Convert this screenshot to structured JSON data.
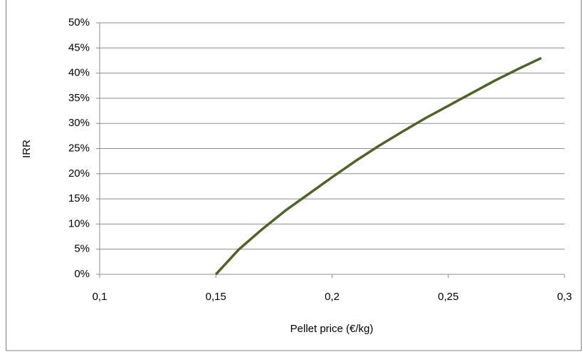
{
  "chart_data": {
    "type": "line",
    "x_label": "Pellet price (€/kg)",
    "y_label": "IRR",
    "x": [
      0.15,
      0.16,
      0.17,
      0.18,
      0.19,
      0.2,
      0.21,
      0.22,
      0.23,
      0.24,
      0.25,
      0.26,
      0.27,
      0.28,
      0.29
    ],
    "series": [
      {
        "color": "#4f6228",
        "values": [
          0,
          5,
          9,
          12.7,
          16,
          19.3,
          22.5,
          25.5,
          28.3,
          31,
          33.5,
          36,
          38.5,
          40.8,
          43
        ]
      }
    ],
    "xlim": [
      0.1,
      0.3
    ],
    "xticks": [
      {
        "value": 0.1,
        "label": "0,1"
      },
      {
        "value": 0.15,
        "label": "0,15"
      },
      {
        "value": 0.2,
        "label": "0,2"
      },
      {
        "value": 0.25,
        "label": "0,25"
      },
      {
        "value": 0.3,
        "label": "0,3"
      }
    ],
    "ylim": [
      0,
      50
    ],
    "yticks": [
      {
        "value": 0,
        "label": "0%"
      },
      {
        "value": 5,
        "label": "5%"
      },
      {
        "value": 10,
        "label": "10%"
      },
      {
        "value": 15,
        "label": "15%"
      },
      {
        "value": 20,
        "label": "20%"
      },
      {
        "value": 25,
        "label": "25%"
      },
      {
        "value": 30,
        "label": "30%"
      },
      {
        "value": 35,
        "label": "35%"
      },
      {
        "value": 40,
        "label": "40%"
      },
      {
        "value": 45,
        "label": "45%"
      },
      {
        "value": 50,
        "label": "50%"
      }
    ],
    "grid": true
  }
}
